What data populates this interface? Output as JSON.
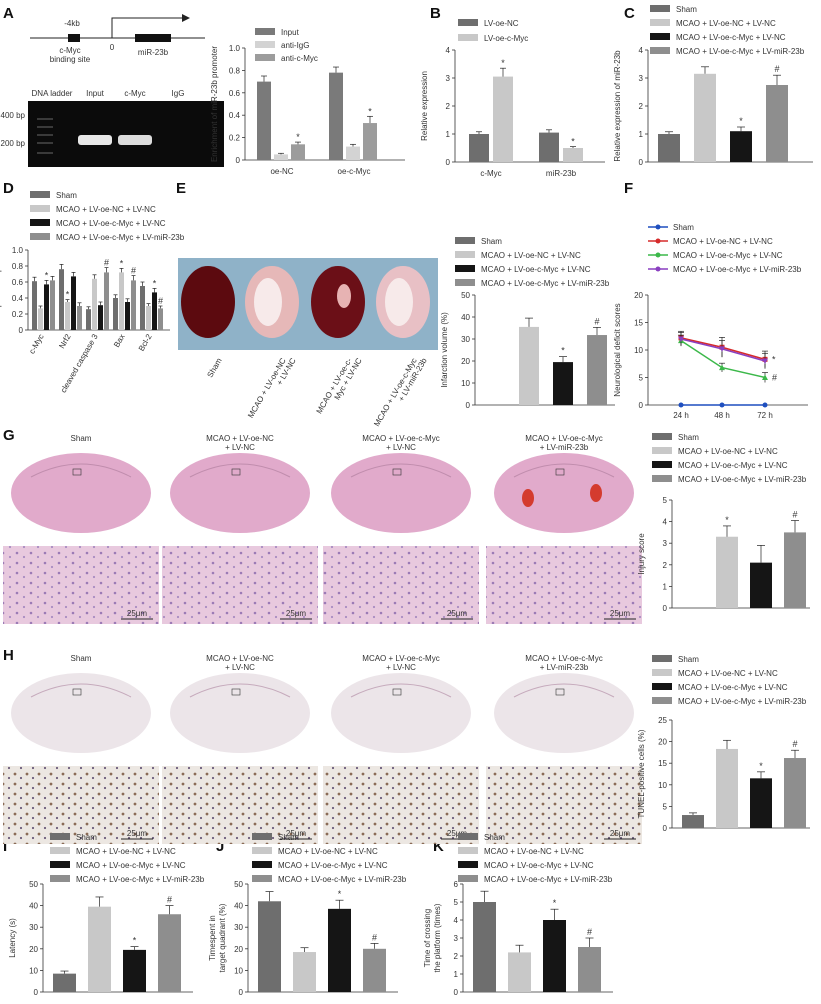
{
  "colors": {
    "sham": "#6e6e6e",
    "oenc": "#c8c8c8",
    "oemyc": "#151515",
    "mir": "#8e8e8e",
    "chip_input": "#7a7a7a",
    "chip_igg": "#d3d3d3",
    "chip_anti": "#9c9c9c",
    "f_sham": "#1f4fbf",
    "f_oenc": "#d62b2b",
    "f_oemyc": "#3cb84a",
    "f_mir": "#8a3fc0"
  },
  "panel_labels": [
    "A",
    "B",
    "C",
    "D",
    "E",
    "F",
    "G",
    "H",
    "I",
    "J",
    "K"
  ],
  "groups": [
    "Sham",
    "MCAO + LV-oe-NC + LV-NC",
    "MCAO + LV-oe-c-Myc + LV-NC",
    "MCAO + LV-oe-c-Myc + LV-miR-23b"
  ],
  "diagram": {
    "upstream": "-4kb",
    "site": "c-Myc",
    "site2": "binding site",
    "tss": "0",
    "gene": "miR-23b"
  },
  "gel": {
    "lanes": [
      "DNA ladder",
      "Input",
      "c-Myc",
      "IgG"
    ],
    "markers": [
      "400 bp",
      "200 bp"
    ]
  },
  "stain_titles": {
    "sham": "Sham",
    "oenc_1": "MCAO + LV-oe-NC",
    "oenc_2": "+ LV-NC",
    "oemyc_1": "MCAO + LV-oe-c-Myc",
    "oemyc_2": "+ LV-NC",
    "mir_1": "MCAO + LV-oe-c-Myc",
    "mir_2": "+ LV-miR-23b"
  },
  "scale_bar": "25μm",
  "brain_labels": {
    "sham": "Sham",
    "oenc_1": "MCAO + LV-oe-NC",
    "oenc_2": "+ LV-NC",
    "oemyc_1": "MCAO + LV-oe-c-",
    "oemyc_2": "Myc + LV-NC",
    "mir_1": "MCAO + LV-oe-c-Myc",
    "mir_2": "+ LV-miR-23b"
  },
  "chart_data": [
    {
      "id": "A",
      "type": "bar",
      "categories": [
        "oe-NC",
        "oe-c-Myc"
      ],
      "series": [
        {
          "name": "Input",
          "values": [
            0.7,
            0.78
          ],
          "errors": [
            0.05,
            0.05
          ]
        },
        {
          "name": "anti-IgG",
          "values": [
            0.05,
            0.12
          ],
          "errors": [
            0.01,
            0.02
          ]
        },
        {
          "name": "anti-c-Myc",
          "values": [
            0.14,
            0.33
          ],
          "errors": [
            0.02,
            0.06
          ]
        }
      ],
      "ylabel": "Enrichment of miR-23b promoter",
      "ylim": [
        0,
        1.0
      ],
      "yticks": [
        "0",
        "0.2",
        "0.4",
        "0.6",
        "0.8",
        "1.0"
      ],
      "annotations": [
        "*",
        "*"
      ]
    },
    {
      "id": "B",
      "type": "bar",
      "categories": [
        "c-Myc",
        "miR-23b"
      ],
      "series": [
        {
          "name": "LV-oe-NC",
          "values": [
            1.0,
            1.05
          ],
          "errors": [
            0.08,
            0.1
          ]
        },
        {
          "name": "LV-oe-c-Myc",
          "values": [
            3.05,
            0.5
          ],
          "errors": [
            0.3,
            0.05
          ]
        }
      ],
      "ylabel": "Relative expression",
      "ylim": [
        0,
        4
      ],
      "yticks": [
        "0",
        "1",
        "2",
        "3",
        "4"
      ],
      "annotations": [
        "*",
        "*"
      ]
    },
    {
      "id": "C",
      "type": "bar",
      "categories": [
        "Sham",
        "MCAO + LV-oe-NC + LV-NC",
        "MCAO + LV-oe-c-Myc + LV-NC",
        "MCAO + LV-oe-c-Myc + LV-miR-23b"
      ],
      "values": [
        1.0,
        3.15,
        1.1,
        2.75
      ],
      "errors": [
        0.08,
        0.25,
        0.15,
        0.35
      ],
      "ylabel": "Relative expression of miR-23b",
      "ylim": [
        0,
        4
      ],
      "yticks": [
        "0",
        "1",
        "2",
        "3",
        "4"
      ],
      "annotations": [
        "*",
        "#"
      ]
    },
    {
      "id": "D",
      "type": "bar",
      "categories": [
        "c-Myc",
        "Nrf2",
        "cleaved caspase 3",
        "Bax",
        "Bcl-2"
      ],
      "series": [
        {
          "name": "Sham",
          "values": [
            0.61,
            0.76,
            0.26,
            0.4,
            0.55
          ],
          "errors": [
            0.05,
            0.06,
            0.03,
            0.04,
            0.05
          ]
        },
        {
          "name": "MCAO + LV-oe-NC + LV-NC",
          "values": [
            0.27,
            0.35,
            0.64,
            0.72,
            0.3
          ],
          "errors": [
            0.03,
            0.03,
            0.05,
            0.05,
            0.03
          ]
        },
        {
          "name": "MCAO + LV-oe-c-Myc + LV-NC",
          "values": [
            0.57,
            0.67,
            0.31,
            0.35,
            0.47
          ],
          "errors": [
            0.05,
            0.05,
            0.04,
            0.04,
            0.05
          ]
        },
        {
          "name": "MCAO + LV-oe-c-Myc + LV-miR-23b",
          "values": [
            0.62,
            0.3,
            0.72,
            0.62,
            0.27
          ],
          "errors": [
            0.05,
            0.04,
            0.06,
            0.06,
            0.03
          ]
        }
      ],
      "ylabel": "Relative protein expression",
      "ylim": [
        0,
        1.0
      ],
      "yticks": [
        "0",
        "0.2",
        "0.4",
        "0.6",
        "0.8",
        "1.0"
      ],
      "annotations": [
        "*",
        "*",
        "#",
        "*",
        "#",
        "*",
        "#"
      ]
    },
    {
      "id": "E",
      "type": "bar",
      "categories": [
        "Sham",
        "MCAO + LV-oe-NC + LV-NC",
        "MCAO + LV-oe-c-Myc + LV-NC",
        "MCAO + LV-oe-c-Myc + LV-miR-23b"
      ],
      "values": [
        0,
        35.5,
        19.5,
        31.8
      ],
      "errors": [
        0,
        4.0,
        2.5,
        3.5
      ],
      "ylabel": "Infarction volume (%)",
      "ylim": [
        0,
        50
      ],
      "yticks": [
        "0",
        "10",
        "20",
        "30",
        "40",
        "50"
      ],
      "annotations": [
        "*",
        "#"
      ]
    },
    {
      "id": "F",
      "type": "line",
      "x": [
        "24 h",
        "48 h",
        "72 h"
      ],
      "series": [
        {
          "name": "Sham",
          "values": [
            0,
            0,
            0
          ]
        },
        {
          "name": "MCAO + LV-oe-NC + LV-NC",
          "values": [
            12.2,
            10.5,
            8.3
          ],
          "errors": [
            1.2,
            1.8,
            1.5
          ]
        },
        {
          "name": "MCAO + LV-oe-c-Myc + LV-NC",
          "values": [
            11.7,
            6.8,
            5.0
          ],
          "errors": [
            1.0,
            0.8,
            0.9
          ]
        },
        {
          "name": "MCAO + LV-oe-c-Myc + LV-miR-23b",
          "values": [
            12.0,
            10.2,
            8.0
          ],
          "errors": [
            1.2,
            1.5,
            1.4
          ]
        }
      ],
      "ylabel": "Neurological deficit scores",
      "ylim": [
        0,
        20
      ],
      "yticks": [
        "0",
        "5",
        "10",
        "15",
        "20"
      ],
      "annotations": [
        "*",
        "#"
      ]
    },
    {
      "id": "G",
      "type": "bar",
      "categories": [
        "Sham",
        "MCAO + LV-oe-NC + LV-NC",
        "MCAO + LV-oe-c-Myc + LV-NC",
        "MCAO + LV-oe-c-Myc + LV-miR-23b"
      ],
      "values": [
        0,
        3.3,
        2.1,
        3.5
      ],
      "errors": [
        0,
        0.5,
        0.8,
        0.55
      ],
      "ylabel": "Injury score",
      "ylim": [
        0,
        5
      ],
      "yticks": [
        "0",
        "1",
        "2",
        "3",
        "4",
        "5"
      ],
      "annotations": [
        "*",
        "#"
      ]
    },
    {
      "id": "H",
      "type": "bar",
      "categories": [
        "Sham",
        "MCAO + LV-oe-NC + LV-NC",
        "MCAO + LV-oe-c-Myc + LV-NC",
        "MCAO + LV-oe-c-Myc + LV-miR-23b"
      ],
      "values": [
        3.0,
        18.3,
        11.5,
        16.2
      ],
      "errors": [
        0.5,
        2.0,
        1.5,
        1.8
      ],
      "ylabel": "TUNEL-positive cells (%)",
      "ylim": [
        0,
        25
      ],
      "yticks": [
        "0",
        "5",
        "10",
        "15",
        "20",
        "25"
      ],
      "annotations": [
        "*",
        "#"
      ]
    },
    {
      "id": "I",
      "type": "bar",
      "categories": [
        "Sham",
        "MCAO + LV-oe-NC + LV-NC",
        "MCAO + LV-oe-c-Myc + LV-NC",
        "MCAO + LV-oe-c-Myc + LV-miR-23b"
      ],
      "values": [
        8.5,
        39.5,
        19.5,
        36.0
      ],
      "errors": [
        1.2,
        4.5,
        1.5,
        4.0
      ],
      "ylabel": "Latency (s)",
      "ylim": [
        0,
        50
      ],
      "yticks": [
        "0",
        "10",
        "20",
        "30",
        "40",
        "50"
      ],
      "annotations": [
        "*",
        "#"
      ]
    },
    {
      "id": "J",
      "type": "bar",
      "categories": [
        "Sham",
        "MCAO + LV-oe-NC + LV-NC",
        "MCAO + LV-oe-c-Myc + LV-NC",
        "MCAO + LV-oe-c-Myc + LV-miR-23b"
      ],
      "values": [
        42.0,
        18.5,
        38.5,
        20.0
      ],
      "errors": [
        4.5,
        2.0,
        4.0,
        2.5
      ],
      "ylabel": "Timespent in target quadrant (%)",
      "ylabel_lines": [
        "Timespent in",
        "target quadrant (%)"
      ],
      "ylim": [
        0,
        50
      ],
      "yticks": [
        "0",
        "10",
        "20",
        "30",
        "40",
        "50"
      ],
      "annotations": [
        "*",
        "#"
      ]
    },
    {
      "id": "K",
      "type": "bar",
      "categories": [
        "Sham",
        "MCAO + LV-oe-NC + LV-NC",
        "MCAO + LV-oe-c-Myc + LV-NC",
        "MCAO + LV-oe-c-Myc + LV-miR-23b"
      ],
      "values": [
        5.0,
        2.2,
        4.0,
        2.5
      ],
      "errors": [
        0.6,
        0.4,
        0.6,
        0.5
      ],
      "ylabel": "Time of crossing the platform (times)",
      "ylabel_lines": [
        "Time of crossing",
        "the platform (times)"
      ],
      "ylim": [
        0,
        6
      ],
      "yticks": [
        "0",
        "1",
        "2",
        "3",
        "4",
        "5",
        "6"
      ],
      "annotations": [
        "*",
        "#"
      ]
    }
  ]
}
